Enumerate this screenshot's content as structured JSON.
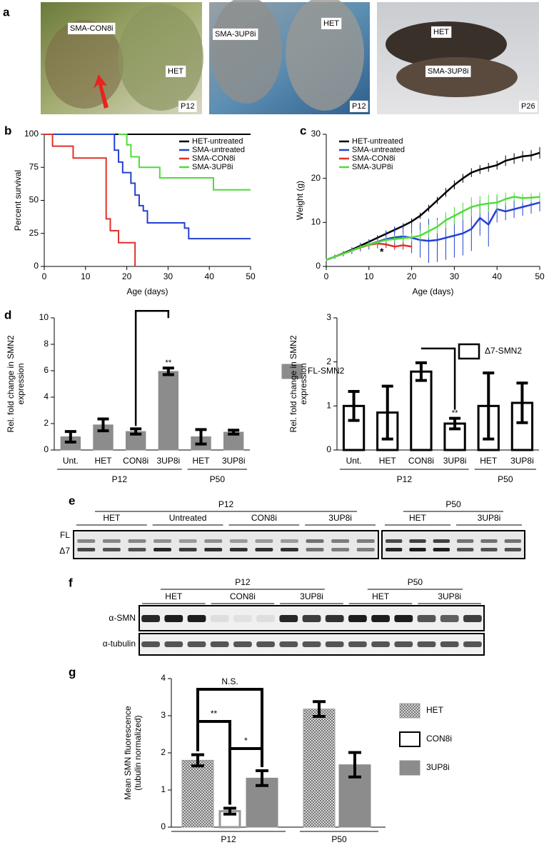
{
  "panel_labels": [
    "a",
    "b",
    "c",
    "d",
    "e",
    "f",
    "g"
  ],
  "photos": [
    {
      "labels": [
        "SMA-CON8i",
        "HET",
        "P12"
      ]
    },
    {
      "labels": [
        "SMA-3UP8i",
        "HET",
        "P12"
      ]
    },
    {
      "labels": [
        "HET",
        "SMA-3UP8i",
        "P26"
      ]
    }
  ],
  "blot_e": {
    "groups": [
      {
        "label": "P12",
        "subgroups": [
          "HET",
          "Untreated",
          "CON8i",
          "3UP8i"
        ]
      },
      {
        "label": "P50",
        "subgroups": [
          "HET",
          "3UP8i"
        ]
      }
    ],
    "rows": [
      "FL",
      "Δ7"
    ]
  },
  "blot_f": {
    "groups": [
      {
        "label": "P12",
        "subgroups": [
          "HET",
          "CON8i",
          "3UP8i"
        ]
      },
      {
        "label": "P50",
        "subgroups": [
          "HET",
          "3UP8i"
        ]
      }
    ],
    "rows": [
      "α-SMN",
      "α-tubulin"
    ]
  },
  "chart_data": [
    {
      "type": "step",
      "xlabel": "Age (days)",
      "ylabel": [
        "Percent survival"
      ],
      "xlim": [
        0,
        50
      ],
      "xticks": [
        0,
        10,
        20,
        30,
        40,
        50
      ],
      "ylim": [
        0,
        100
      ],
      "yticks": [
        0,
        25,
        50,
        75,
        100
      ],
      "legend": "upper right",
      "series": [
        {
          "name": "HET-untreated",
          "color": "#000000",
          "x": [
            0,
            50
          ],
          "values": [
            100,
            100
          ]
        },
        {
          "name": "SMA-untreated",
          "color": "#2440d0",
          "x": [
            0,
            17,
            18,
            19,
            21,
            22,
            23,
            24,
            25,
            34,
            35,
            50
          ],
          "values": [
            100,
            88,
            79,
            71,
            63,
            54,
            46,
            42,
            33,
            29,
            21,
            21
          ]
        },
        {
          "name": "SMA-CON8i",
          "color": "#e2302a",
          "x": [
            0,
            2,
            7,
            15,
            16,
            18,
            22
          ],
          "values": [
            100,
            91,
            82,
            36,
            27,
            18,
            0
          ]
        },
        {
          "name": "SMA-3UP8i",
          "color": "#4fdc3a",
          "x": [
            18,
            20,
            21,
            23,
            28,
            41,
            50
          ],
          "values": [
            100,
            92,
            83,
            75,
            67,
            58,
            58
          ]
        }
      ]
    },
    {
      "type": "line",
      "xlabel": "Age (days)",
      "ylabel": [
        "Weight (g)"
      ],
      "xlim": [
        0,
        50
      ],
      "xticks": [
        0,
        10,
        20,
        30,
        40,
        50
      ],
      "ylim": [
        0,
        30
      ],
      "yticks": [
        0,
        10,
        20,
        30
      ],
      "legend": "upper left",
      "annotations": [
        "*"
      ],
      "series": [
        {
          "name": "HET-untreated",
          "color": "#000000",
          "x": [
            0,
            2,
            4,
            6,
            8,
            10,
            12,
            14,
            16,
            18,
            20,
            22,
            24,
            26,
            28,
            30,
            32,
            34,
            36,
            38,
            40,
            42,
            44,
            46,
            48,
            50
          ],
          "values": [
            1.5,
            2.2,
            3,
            3.8,
            4.7,
            5.6,
            6.5,
            7.4,
            8.3,
            9.2,
            10.2,
            11.5,
            13.2,
            15,
            16.8,
            18.5,
            20,
            21.3,
            22,
            22.5,
            23,
            24,
            24.5,
            25,
            25.2,
            25.8
          ],
          "errors": [
            0.2,
            0.2,
            0.3,
            0.3,
            0.4,
            0.4,
            0.5,
            0.5,
            0.6,
            0.6,
            0.7,
            0.7,
            0.8,
            0.8,
            1,
            1,
            1,
            1,
            1,
            1,
            1,
            1.2,
            1.2,
            1.2,
            1.2,
            1.3
          ]
        },
        {
          "name": "SMA-untreated",
          "color": "#2440d0",
          "x": [
            0,
            2,
            4,
            6,
            8,
            10,
            12,
            14,
            16,
            18,
            20,
            22,
            24,
            26,
            28,
            30,
            32,
            34,
            36,
            38,
            40,
            42,
            44,
            46,
            48,
            50
          ],
          "values": [
            1.5,
            2.2,
            2.9,
            3.6,
            4.4,
            5,
            5.6,
            6.2,
            6.6,
            6.8,
            6.5,
            6,
            5.8,
            6,
            6.5,
            7,
            7.5,
            8.5,
            11,
            9.5,
            13,
            12.5,
            13,
            13.5,
            14,
            14.5
          ],
          "errors": [
            0.4,
            0.5,
            0.6,
            0.8,
            1,
            1.2,
            1.5,
            2,
            2.5,
            3,
            3.5,
            4,
            5,
            5,
            5,
            5,
            5,
            5,
            4,
            5,
            3,
            2,
            2,
            2,
            2,
            2
          ]
        },
        {
          "name": "SMA-CON8i",
          "color": "#e2302a",
          "x": [
            0,
            2,
            4,
            6,
            8,
            10,
            12,
            14,
            16,
            18,
            20
          ],
          "values": [
            1.5,
            2.2,
            2.9,
            3.6,
            4.3,
            4.9,
            5.2,
            5,
            4.5,
            4.8,
            4.5
          ],
          "errors": [
            0.2,
            0.2,
            0.3,
            0.3,
            0.4,
            0.5,
            0.6,
            0.8,
            0.8,
            0.7,
            0.6
          ]
        },
        {
          "name": "SMA-3UP8i",
          "color": "#4fdc3a",
          "x": [
            0,
            2,
            4,
            6,
            8,
            10,
            12,
            14,
            16,
            18,
            20,
            22,
            24,
            26,
            28,
            30,
            32,
            34,
            36,
            38,
            40,
            42,
            44,
            46,
            48,
            50
          ],
          "values": [
            1.5,
            2.2,
            2.9,
            3.6,
            4.4,
            5,
            5.5,
            6,
            6.2,
            6.4,
            6.6,
            7,
            8,
            9,
            10.5,
            11.5,
            12.5,
            13.5,
            14,
            14.3,
            14.5,
            15.3,
            15.8,
            15.5,
            15.6,
            15.8
          ],
          "errors": [
            0.2,
            0.2,
            0.3,
            0.3,
            0.4,
            0.5,
            0.6,
            0.7,
            0.8,
            1,
            1,
            1.2,
            1.5,
            1.6,
            1.8,
            2,
            2,
            2.2,
            2,
            2,
            2,
            1.5,
            1,
            1,
            1,
            1
          ]
        }
      ]
    },
    {
      "type": "bar",
      "ylabel": [
        "Rel. fold change in SMN2",
        "expression"
      ],
      "ylim": [
        0,
        10
      ],
      "yticks": [
        0,
        2,
        4,
        6,
        8,
        10
      ],
      "legend": "center right",
      "legend_name": "FL-SMN2",
      "color": "#8c8c8c",
      "stroke": "#8c8c8c",
      "annotations": [
        "**"
      ],
      "groups": [
        {
          "label": "P12",
          "categories": [
            "Unt.",
            "HET",
            "CON8i",
            "3UP8i"
          ],
          "values": [
            1,
            1.9,
            1.4,
            5.95
          ],
          "errors": [
            0.4,
            0.45,
            0.2,
            0.25
          ]
        },
        {
          "label": "P50",
          "categories": [
            "HET",
            "3UP8i"
          ],
          "values": [
            1,
            1.35
          ],
          "errors": [
            0.55,
            0.15
          ]
        }
      ]
    },
    {
      "type": "bar",
      "ylabel": [
        "Rel. fold change in SMN2",
        "expression"
      ],
      "ylim": [
        0,
        3
      ],
      "yticks": [
        0,
        1,
        2,
        3
      ],
      "legend": "upper right",
      "legend_name": "Δ7-SMN2",
      "color": "#ffffff",
      "stroke": "#000000",
      "annotations": [
        "**"
      ],
      "groups": [
        {
          "label": "P12",
          "categories": [
            "Unt.",
            "HET",
            "CON8i",
            "3UP8i"
          ],
          "values": [
            1,
            0.85,
            1.78,
            0.6
          ],
          "errors": [
            0.33,
            0.6,
            0.2,
            0.12
          ]
        },
        {
          "label": "P50",
          "categories": [
            "HET",
            "3UP8i"
          ],
          "values": [
            1,
            1.07
          ],
          "errors": [
            0.75,
            0.45
          ]
        }
      ]
    },
    {
      "type": "grouped_bar",
      "ylabel": [
        "Mean SMN fluorescence",
        "(tubulin normalized)"
      ],
      "ylim": [
        0,
        4
      ],
      "yticks": [
        0,
        1,
        2,
        3,
        4
      ],
      "legend": "center right",
      "categories": [
        "P12",
        "P50"
      ],
      "annotations": [
        "N.S.",
        "**",
        "*"
      ],
      "series": [
        {
          "name": "HET",
          "color": "#9a9a9a",
          "stroke": "#9a9a9a",
          "pattern": "dots",
          "values": [
            1.8,
            3.18
          ],
          "errors": [
            0.15,
            0.2
          ]
        },
        {
          "name": "CON8i",
          "color": "#ffffff",
          "stroke": "#9a9a9a",
          "values": [
            0.43,
            null
          ],
          "errors": [
            0.08,
            null
          ]
        },
        {
          "name": "3UP8i",
          "color": "#8c8c8c",
          "stroke": "#8c8c8c",
          "values": [
            1.32,
            1.68
          ],
          "errors": [
            0.2,
            0.33
          ]
        }
      ]
    }
  ]
}
